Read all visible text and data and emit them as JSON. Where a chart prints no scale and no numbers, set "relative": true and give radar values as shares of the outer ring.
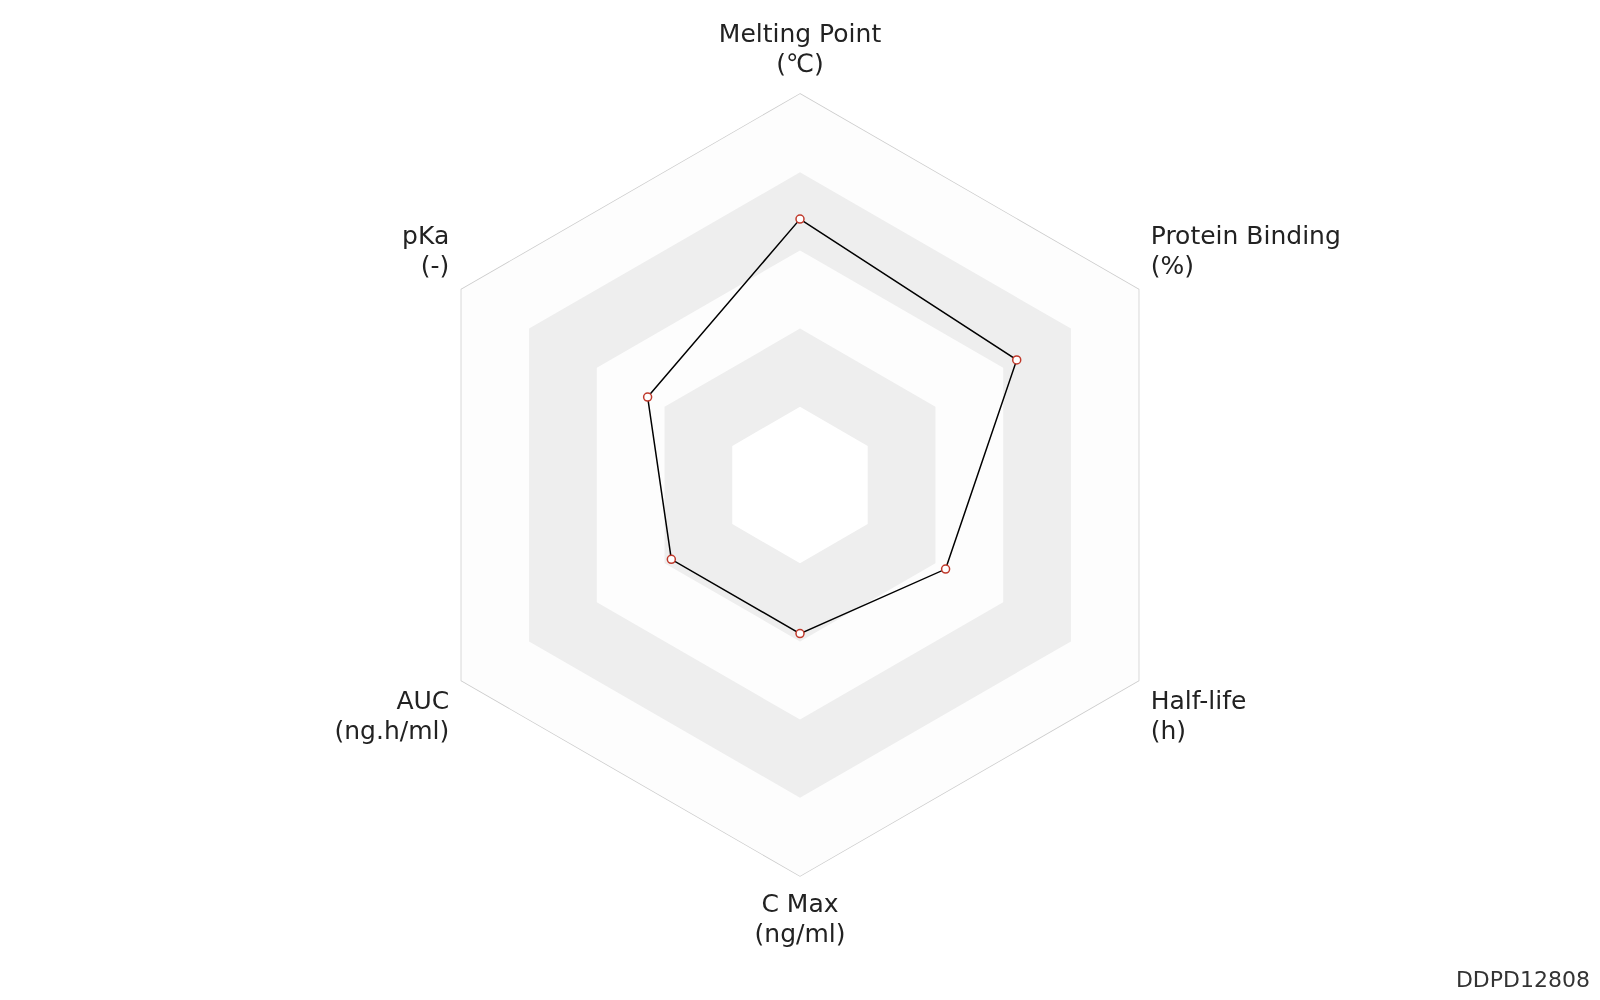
{
  "chart_data": {
    "type": "radar",
    "relative": true,
    "categories": [
      "Melting Point\n(℃)",
      "Protein Binding\n(%)",
      "Half-life\n(h)",
      "C Max\n(ng/ml)",
      "AUC\n(ng.h/ml)",
      "pKa\n(-)"
    ],
    "series": [
      {
        "color": "#000000",
        "values": [
          0.68,
          0.64,
          0.43,
          0.38,
          0.38,
          0.45
        ]
      }
    ],
    "grid": true,
    "legend": false,
    "marker": "circle",
    "line_style": "solid",
    "annotations": [
      "DDPD12808"
    ]
  }
}
